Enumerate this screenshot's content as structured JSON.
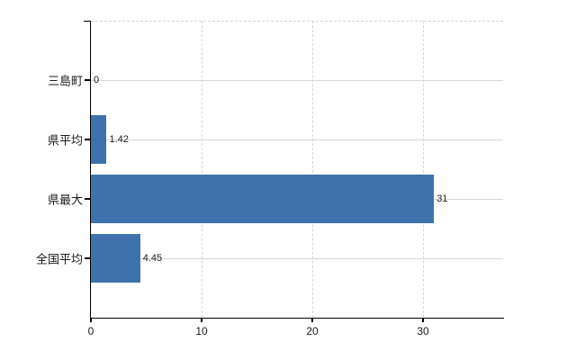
{
  "chart_data": {
    "type": "bar",
    "orientation": "horizontal",
    "title": "",
    "xlabel": "",
    "ylabel": "",
    "categories": [
      "三島町",
      "県平均",
      "県最大",
      "全国平均"
    ],
    "values": [
      0,
      1.42,
      31,
      4.45
    ],
    "value_labels": [
      "0",
      "1.42",
      "31",
      "4.45"
    ],
    "x_ticks": [
      0,
      10,
      20,
      30
    ],
    "x_tick_labels": [
      "0",
      "10",
      "20",
      "30"
    ],
    "xlim": [
      0,
      37.2
    ],
    "legend": "none",
    "grid": {
      "horizontal_lines": "solid, one per category",
      "vertical_lines": "dashed, at ticks 10/20/30",
      "top_border": "dashed"
    },
    "colors": {
      "bar": "#3f71ad",
      "solid_grid": "#d5dad5",
      "dashed_grid": "#d4d6da",
      "axis": "#000000",
      "text": "#1a1a1a"
    }
  }
}
